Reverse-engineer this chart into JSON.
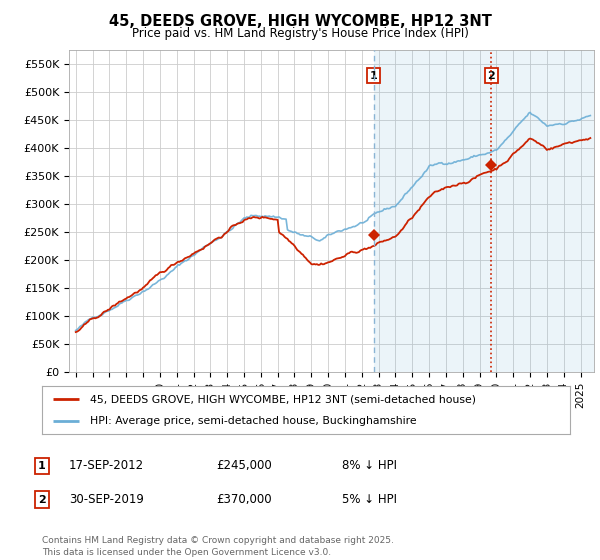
{
  "title": "45, DEEDS GROVE, HIGH WYCOMBE, HP12 3NT",
  "subtitle": "Price paid vs. HM Land Registry's House Price Index (HPI)",
  "ylabel_ticks": [
    "£0",
    "£50K",
    "£100K",
    "£150K",
    "£200K",
    "£250K",
    "£300K",
    "£350K",
    "£400K",
    "£450K",
    "£500K",
    "£550K"
  ],
  "ytick_values": [
    0,
    50000,
    100000,
    150000,
    200000,
    250000,
    300000,
    350000,
    400000,
    450000,
    500000,
    550000
  ],
  "ylim": [
    0,
    575000
  ],
  "hpi_color": "#6baed6",
  "price_color": "#cc2200",
  "vline1_color": "#8ab4d4",
  "vline1_style": "dashed",
  "vline2_color": "#cc2200",
  "vline2_style": "dotted",
  "marker1_price": 245000,
  "marker2_price": 370000,
  "transaction1": "17-SEP-2012",
  "transaction1_price": "£245,000",
  "transaction1_info": "8% ↓ HPI",
  "transaction2": "30-SEP-2019",
  "transaction2_price": "£370,000",
  "transaction2_info": "5% ↓ HPI",
  "legend_label1": "45, DEEDS GROVE, HIGH WYCOMBE, HP12 3NT (semi-detached house)",
  "legend_label2": "HPI: Average price, semi-detached house, Buckinghamshire",
  "footer": "Contains HM Land Registry data © Crown copyright and database right 2025.\nThis data is licensed under the Open Government Licence v3.0.",
  "background_color": "#ffffff",
  "plot_bg_color": "#ffffff",
  "grid_color": "#cccccc",
  "shade_color": "#ddeeff"
}
